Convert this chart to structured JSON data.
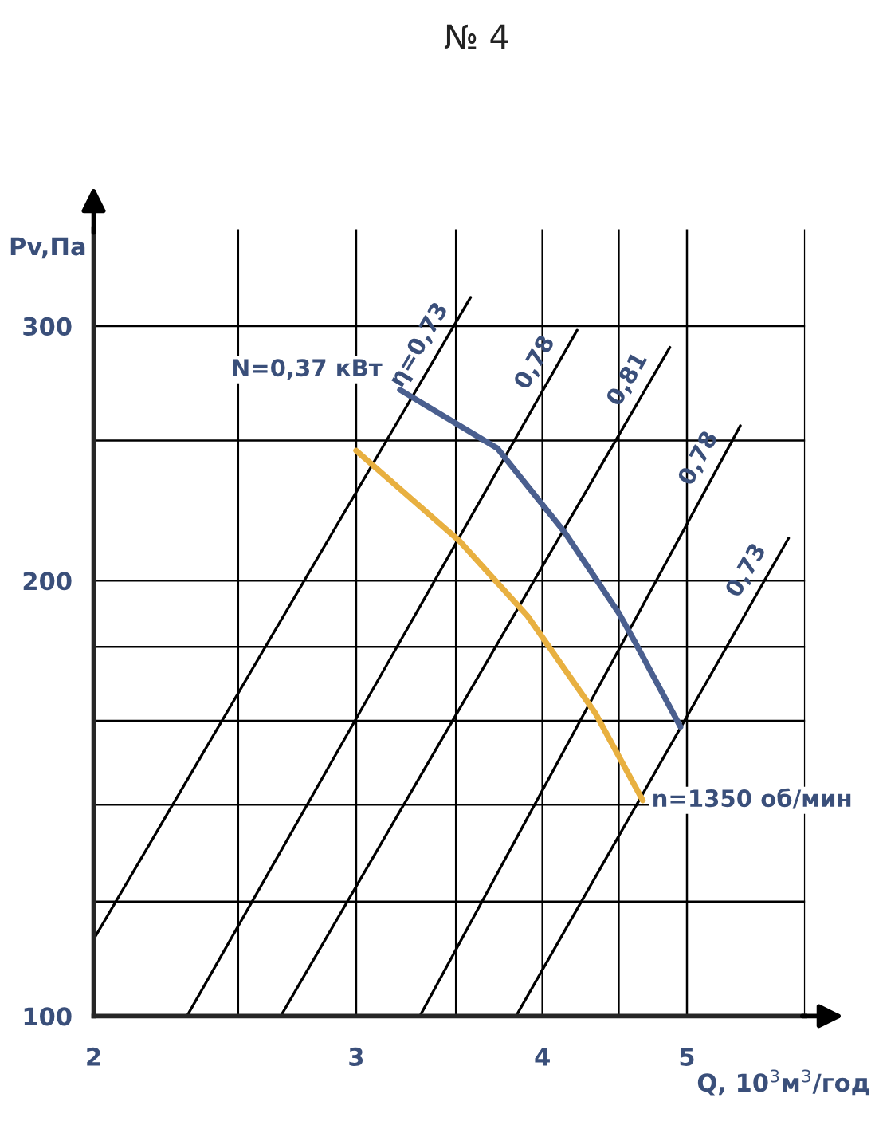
{
  "chart_data": {
    "type": "line",
    "title": "№ 4",
    "xlabel": "Q, 10$^{3}$м$^{3}$/год",
    "ylabel": "Pv,Па",
    "log": "xy",
    "xlim": [
      2,
      6
    ],
    "ylim": [
      100,
      350
    ],
    "xticks": [
      2,
      {
        "value": 2.5,
        "label": null
      },
      3,
      {
        "value": 3.5,
        "label": null
      },
      4,
      {
        "value": 4.5,
        "label": null
      },
      5,
      {
        "value": 6,
        "label": null
      }
    ],
    "yticks": [
      100,
      {
        "value": 120,
        "label": null
      },
      {
        "value": 140,
        "label": null
      },
      {
        "value": 160,
        "label": null
      },
      {
        "value": 180,
        "label": null
      },
      200,
      {
        "value": 250,
        "label": null
      },
      300
    ],
    "grid": true,
    "legend": false,
    "series": [
      {
        "name": "η=0,73",
        "color": "#000000",
        "x": [
          2,
          3.58
        ],
        "values": [
          113,
          314
        ]
      },
      {
        "name": "0,78",
        "color": "#000000",
        "x": [
          2.31,
          4.22
        ],
        "values": [
          100,
          298
        ]
      },
      {
        "name": "0,81",
        "color": "#000000",
        "x": [
          2.67,
          4.87
        ],
        "values": [
          100,
          290
        ]
      },
      {
        "name": "0,78",
        "color": "#000000",
        "x": [
          3.31,
          5.43
        ],
        "values": [
          100,
          256
        ]
      },
      {
        "name": "0,73",
        "color": "#000000",
        "x": [
          3.84,
          5.85
        ],
        "values": [
          100,
          214
        ]
      },
      {
        "name": "N=0,37 кВт",
        "color": "#4a5f8f",
        "x": [
          3.21,
          3.73,
          4.14,
          4.5,
          4.62,
          4.95
        ],
        "values": [
          271,
          247,
          216,
          190,
          181,
          158.5
        ]
      },
      {
        "name": "n=1350 об/мин",
        "color": "#e8b040",
        "x": [
          3.0,
          3.52,
          3.91,
          4.34,
          4.67
        ],
        "values": [
          246,
          213,
          189,
          162,
          141
        ]
      }
    ]
  }
}
